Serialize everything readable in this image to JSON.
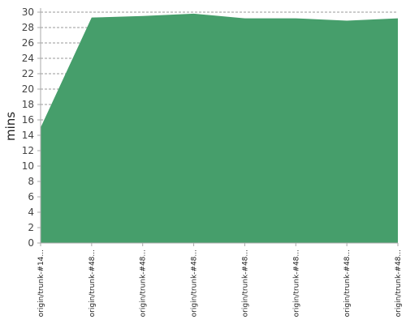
{
  "chart_data": {
    "type": "area",
    "categories": [
      "origin/trunk-#14...",
      "origin/trunk-#48...",
      "origin/trunk-#48...",
      "origin/trunk-#48...",
      "origin/trunk-#48...",
      "origin/trunk-#48...",
      "origin/trunk-#48...",
      "origin/trunk-#48..."
    ],
    "series": [
      {
        "values": [
          15.0,
          29.3,
          29.5,
          29.8,
          29.2,
          29.2,
          28.9,
          29.2
        ]
      }
    ],
    "ylabel": "mins",
    "xlabel": "",
    "ylim": [
      0,
      30
    ],
    "yticks": [
      0,
      2,
      4,
      6,
      8,
      10,
      12,
      14,
      16,
      18,
      20,
      22,
      24,
      26,
      28,
      30
    ],
    "grid": true,
    "fill_color": "#469e6b",
    "grid_color": "#777777"
  }
}
